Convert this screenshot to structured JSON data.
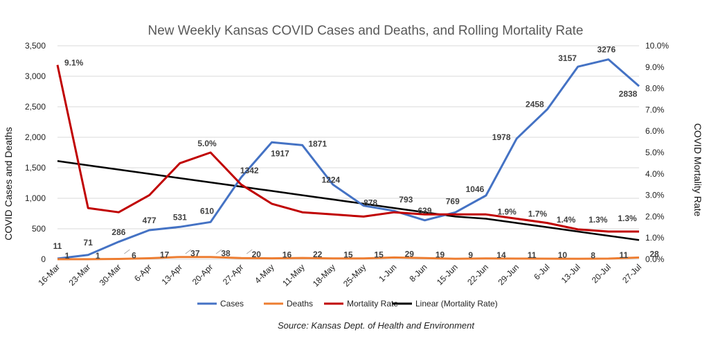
{
  "chart_data": {
    "type": "line",
    "title": "New Weekly Kansas COVID Cases and Deaths, and Rolling Mortality Rate",
    "ylabel": "COVID Cases  and Deaths",
    "y2label": "COVID Mortality Rate",
    "source": "Source: Kansas Dept. of Health and Environment",
    "categories": [
      "16-Mar",
      "23-Mar",
      "30-Mar",
      "6-Apr",
      "13-Apr",
      "20-Apr",
      "27-Apr",
      "4-May",
      "11-May",
      "18-May",
      "25-May",
      "1-Jun",
      "8-Jun",
      "15-Jun",
      "22-Jun",
      "29-Jun",
      "6-Jul",
      "13-Jul",
      "20-Jul",
      "27-Jul"
    ],
    "ylim": [
      0,
      3500
    ],
    "yticks": [
      "0",
      "500",
      "1,000",
      "1,500",
      "2,000",
      "2,500",
      "3,000",
      "3,500"
    ],
    "y2lim": [
      0,
      10
    ],
    "y2ticks": [
      "0.0%",
      "1.0%",
      "2.0%",
      "3.0%",
      "4.0%",
      "5.0%",
      "6.0%",
      "7.0%",
      "8.0%",
      "9.0%",
      "10.0%"
    ],
    "grid": true,
    "legend_position": "bottom",
    "series": [
      {
        "name": "Cases",
        "axis": "left",
        "color": "#4472C4",
        "values": [
          11,
          71,
          286,
          477,
          531,
          610,
          1342,
          1917,
          1871,
          1224,
          878,
          793,
          639,
          769,
          1046,
          1978,
          2458,
          3157,
          3276,
          2838
        ],
        "labels": [
          "11",
          "71",
          "286",
          "477",
          "531",
          "610",
          "1342",
          "1917",
          "1871",
          "1224",
          "878",
          "793",
          "639",
          "769",
          "1046",
          "1978",
          "2458",
          "3157",
          "3276",
          "2838"
        ]
      },
      {
        "name": "Deaths",
        "axis": "left",
        "color": "#ED7D31",
        "values": [
          1,
          1,
          6,
          17,
          37,
          38,
          20,
          16,
          22,
          15,
          15,
          29,
          19,
          9,
          14,
          11,
          10,
          8,
          11,
          28
        ],
        "labels": [
          "1",
          "1",
          "6",
          "17",
          "37",
          "38",
          "20",
          "16",
          "22",
          "15",
          "15",
          "29",
          "19",
          "9",
          "14",
          "11",
          "10",
          "8",
          "11",
          "28"
        ]
      },
      {
        "name": "Mortality Rate",
        "axis": "right",
        "color": "#C00000",
        "values": [
          9.1,
          2.4,
          2.2,
          3.0,
          4.5,
          5.0,
          3.5,
          2.6,
          2.2,
          2.1,
          2.0,
          2.2,
          2.1,
          2.1,
          2.1,
          1.9,
          1.7,
          1.4,
          1.3,
          1.3
        ],
        "labels": [
          "9.1%",
          "",
          "",
          "",
          "",
          "5.0%",
          "",
          "",
          "",
          "",
          "",
          "",
          "",
          "",
          "",
          "1.9%",
          "1.7%",
          "1.4%",
          "1.3%",
          "1.3%"
        ]
      },
      {
        "name": "Linear (Mortality Rate)",
        "axis": "right",
        "color": "#000000",
        "trendline": true,
        "values": [
          4.6,
          4.4,
          4.2,
          4.0,
          3.8,
          3.6,
          3.4,
          3.2,
          3.0,
          2.8,
          2.6,
          2.4,
          2.2,
          2.0,
          1.9,
          1.7,
          1.5,
          1.3,
          1.1,
          0.9
        ]
      }
    ]
  }
}
